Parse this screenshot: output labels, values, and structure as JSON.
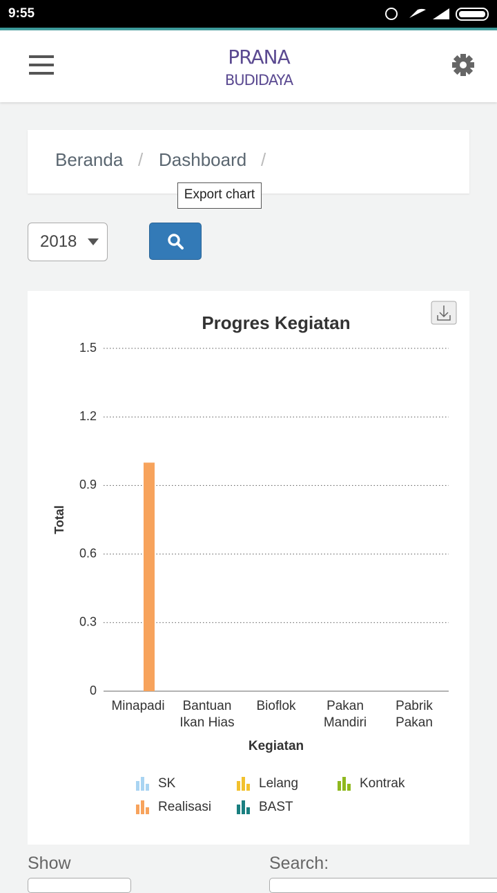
{
  "status_bar": {
    "time": "9:55"
  },
  "header": {
    "logo_line1": "PRANA",
    "logo_line2": "BUDIDAYA"
  },
  "breadcrumb": [
    "Beranda",
    "Dashboard"
  ],
  "tooltip": "Export chart",
  "filter": {
    "year": "2018"
  },
  "chart_data": {
    "type": "bar",
    "title": "Progres Kegiatan",
    "x_label": "Kegiatan",
    "y_label": "Total",
    "categories": [
      "Minapadi",
      "Bantuan\nIkan Hias",
      "Bioflok",
      "Pakan\nMandiri",
      "Pabrik\nPakan"
    ],
    "series": [
      {
        "name": "SK",
        "color": "#a9d4f2",
        "values": [
          0,
          0,
          0,
          0,
          0
        ]
      },
      {
        "name": "Lelang",
        "color": "#f2c12e",
        "values": [
          0,
          0,
          0,
          0,
          0
        ]
      },
      {
        "name": "Kontrak",
        "color": "#8fb81f",
        "values": [
          0,
          0,
          0,
          0,
          0
        ]
      },
      {
        "name": "Realisasi",
        "color": "#f7a35c",
        "values": [
          1,
          0,
          0,
          0,
          0
        ]
      },
      {
        "name": "BAST",
        "color": "#1a7f80",
        "values": [
          0,
          0,
          0,
          0,
          0
        ]
      }
    ],
    "ylim": [
      0,
      1.5
    ],
    "yticks": [
      0,
      0.3,
      0.6,
      0.9,
      1.2,
      1.5
    ],
    "grid": true,
    "legend": "bottom"
  },
  "table_controls": {
    "show": "Show",
    "search": "Search:"
  }
}
